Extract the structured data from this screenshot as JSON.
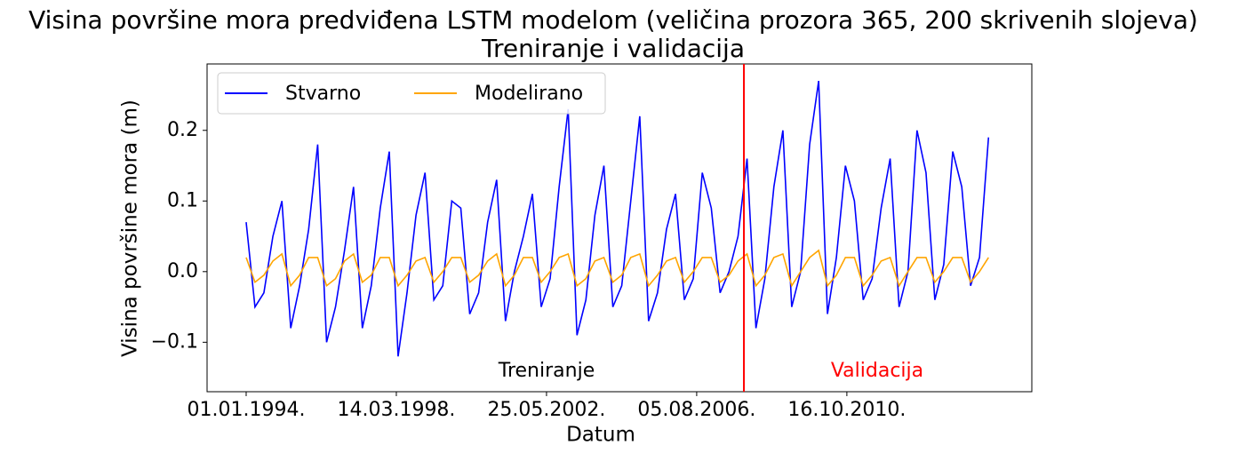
{
  "chart_data": {
    "type": "line",
    "title": "Visina površine mora predviđena LSTM modelom (veličina prozora 365, 200 skrivenih slojeva)",
    "subtitle": "Treniranje i validacija",
    "x_label": "Datum",
    "y_label": "Visina površine mora (m)",
    "x": [
      "01.01.1994.",
      "01.04.1994.",
      "01.07.1994.",
      "01.10.1994.",
      "01.01.1995.",
      "01.04.1995.",
      "01.07.1995.",
      "01.10.1995.",
      "01.01.1996.",
      "01.04.1996.",
      "01.07.1996.",
      "01.10.1996.",
      "01.01.1997.",
      "01.04.1997.",
      "01.07.1997.",
      "01.10.1997.",
      "01.01.1998.",
      "01.04.1998.",
      "01.07.1998.",
      "01.10.1998.",
      "01.01.1999.",
      "01.04.1999.",
      "01.07.1999.",
      "01.10.1999.",
      "01.01.2000.",
      "01.04.2000.",
      "01.07.2000.",
      "01.10.2000.",
      "01.01.2001.",
      "01.04.2001.",
      "01.07.2001.",
      "01.10.2001.",
      "01.01.2002.",
      "01.04.2002.",
      "01.07.2002.",
      "01.10.2002.",
      "01.01.2003.",
      "01.04.2003.",
      "01.07.2003.",
      "01.10.2003.",
      "01.01.2004.",
      "01.04.2004.",
      "01.07.2004.",
      "01.10.2004.",
      "01.01.2005.",
      "01.04.2005.",
      "01.07.2005.",
      "01.10.2005.",
      "01.01.2006.",
      "01.04.2006.",
      "01.07.2006.",
      "01.10.2006.",
      "01.01.2007.",
      "01.04.2007.",
      "01.07.2007.",
      "01.10.2007.",
      "01.01.2008.",
      "01.04.2008.",
      "01.07.2008.",
      "01.10.2008.",
      "01.01.2009.",
      "01.04.2009.",
      "01.07.2009.",
      "01.10.2009.",
      "01.01.2010.",
      "01.04.2010.",
      "01.07.2010.",
      "01.10.2010.",
      "01.01.2011.",
      "01.04.2011.",
      "01.07.2011.",
      "01.10.2011.",
      "01.01.2012.",
      "01.04.2012.",
      "01.07.2012.",
      "01.10.2012.",
      "01.01.2013.",
      "01.04.2013.",
      "01.07.2013.",
      "01.10.2013.",
      "01.01.2014.",
      "01.04.2014.",
      "01.07.2014.",
      "01.10.2014."
    ],
    "series": [
      {
        "name": "Stvarno",
        "color": "#0000ff",
        "values": [
          0.07,
          -0.05,
          -0.03,
          0.05,
          0.1,
          -0.08,
          -0.02,
          0.06,
          0.18,
          -0.1,
          -0.05,
          0.03,
          0.12,
          -0.08,
          -0.02,
          0.09,
          0.17,
          -0.12,
          -0.03,
          0.08,
          0.14,
          -0.04,
          -0.02,
          0.1,
          0.09,
          -0.06,
          -0.03,
          0.07,
          0.13,
          -0.07,
          0.0,
          0.05,
          0.11,
          -0.05,
          -0.01,
          0.12,
          0.23,
          -0.09,
          -0.04,
          0.08,
          0.15,
          -0.05,
          -0.02,
          0.1,
          0.22,
          -0.07,
          -0.03,
          0.06,
          0.11,
          -0.04,
          -0.01,
          0.14,
          0.09,
          -0.03,
          0.0,
          0.05,
          0.16,
          -0.08,
          -0.01,
          0.12,
          0.2,
          -0.05,
          0.0,
          0.18,
          0.27,
          -0.06,
          0.02,
          0.15,
          0.1,
          -0.04,
          -0.01,
          0.09,
          0.16,
          -0.05,
          0.0,
          0.2,
          0.14,
          -0.04,
          0.01,
          0.17,
          0.12,
          -0.02,
          0.02,
          0.19
        ]
      },
      {
        "name": "Modelirano",
        "color": "#ffa500",
        "values": [
          0.02,
          -0.015,
          -0.005,
          0.015,
          0.025,
          -0.02,
          -0.005,
          0.02,
          0.02,
          -0.02,
          -0.01,
          0.015,
          0.025,
          -0.015,
          -0.005,
          0.02,
          0.02,
          -0.02,
          -0.005,
          0.015,
          0.02,
          -0.015,
          0.0,
          0.02,
          0.02,
          -0.015,
          -0.005,
          0.015,
          0.025,
          -0.02,
          -0.005,
          0.02,
          0.02,
          -0.015,
          0.0,
          0.02,
          0.025,
          -0.02,
          -0.01,
          0.015,
          0.02,
          -0.015,
          -0.005,
          0.02,
          0.025,
          -0.02,
          -0.005,
          0.015,
          0.02,
          -0.015,
          0.0,
          0.02,
          0.02,
          -0.015,
          -0.005,
          0.015,
          0.025,
          -0.02,
          -0.005,
          0.02,
          0.025,
          -0.02,
          0.0,
          0.02,
          0.03,
          -0.02,
          -0.005,
          0.02,
          0.02,
          -0.02,
          -0.005,
          0.015,
          0.02,
          -0.02,
          0.0,
          0.02,
          0.02,
          -0.015,
          0.0,
          0.02,
          0.02,
          -0.015,
          0.0,
          0.02
        ]
      }
    ],
    "split_date": "30.11.2007.",
    "split_color": "#ff0000",
    "annotations": [
      {
        "text": "Treniranje",
        "color": "#000000"
      },
      {
        "text": "Validacija",
        "color": "#ff0000"
      }
    ],
    "xlim": [
      "28.11.1992.",
      "17.12.2015."
    ],
    "xticks": [
      "01.01.1994.",
      "14.03.1998.",
      "25.05.2002.",
      "05.08.2006.",
      "16.10.2010."
    ],
    "ylim": [
      -0.17,
      0.294
    ],
    "yticks": [
      {
        "value": -0.1,
        "label": "−0.1"
      },
      {
        "value": 0,
        "label": "0.0"
      },
      {
        "value": 0.1,
        "label": "0.1"
      },
      {
        "value": 0.2,
        "label": "0.2"
      }
    ],
    "legend": "upper left",
    "grid": false
  }
}
